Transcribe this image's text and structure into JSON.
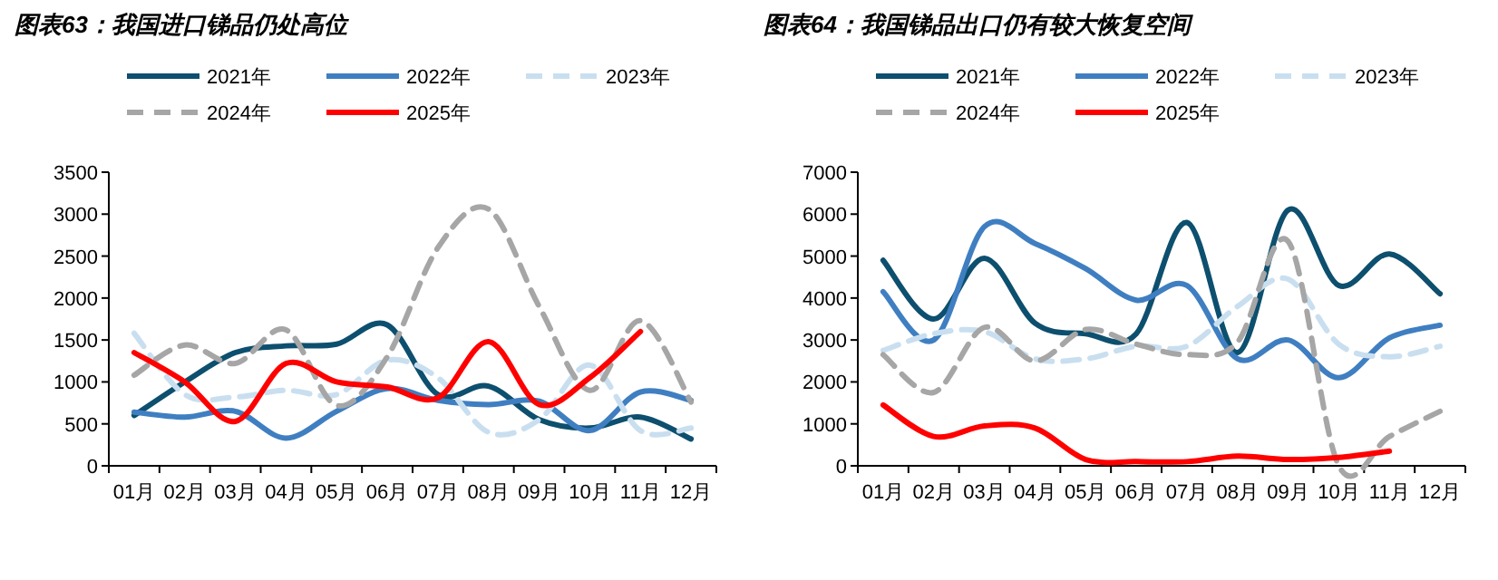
{
  "chart_data": [
    {
      "type": "line",
      "title": "图表63：我国进口锑品仍处高位",
      "legend": "top",
      "categories": [
        "01月",
        "02月",
        "03月",
        "04月",
        "05月",
        "06月",
        "07月",
        "08月",
        "09月",
        "10月",
        "11月",
        "12月"
      ],
      "ylim": [
        0,
        3500
      ],
      "yticks": [
        0,
        500,
        1000,
        1500,
        2000,
        2500,
        3000,
        3500
      ],
      "series": [
        {
          "name": "2021年",
          "color": "#0d4f6e",
          "line_style": "solid",
          "values": [
            600,
            1000,
            1350,
            1430,
            1450,
            1680,
            850,
            950,
            550,
            450,
            580,
            320
          ]
        },
        {
          "name": "2022年",
          "color": "#3f7fc1",
          "line_style": "solid",
          "values": [
            640,
            580,
            650,
            330,
            650,
            920,
            780,
            730,
            770,
            420,
            880,
            780
          ]
        },
        {
          "name": "2023年",
          "color": "#c9dff0",
          "line_style": "dashed",
          "values": [
            1580,
            850,
            820,
            900,
            850,
            1260,
            1050,
            400,
            550,
            1200,
            420,
            450
          ]
        },
        {
          "name": "2024年",
          "color": "#a6a6a6",
          "line_style": "dashed",
          "values": [
            1080,
            1440,
            1220,
            1620,
            720,
            1300,
            2600,
            3060,
            1900,
            900,
            1730,
            760
          ]
        },
        {
          "name": "2025年",
          "color": "#ff0000",
          "line_style": "solid",
          "values": [
            1350,
            1000,
            530,
            1220,
            1000,
            940,
            810,
            1480,
            730,
            1050,
            1600,
            null
          ]
        }
      ]
    },
    {
      "type": "line",
      "title": "图表64：我国锑品出口仍有较大恢复空间",
      "legend": "top",
      "categories": [
        "01月",
        "02月",
        "03月",
        "04月",
        "05月",
        "06月",
        "07月",
        "08月",
        "09月",
        "10月",
        "11月",
        "12月"
      ],
      "ylim": [
        0,
        7000
      ],
      "yticks": [
        0,
        1000,
        2000,
        3000,
        4000,
        5000,
        6000,
        7000
      ],
      "series": [
        {
          "name": "2021年",
          "color": "#0d4f6e",
          "line_style": "solid",
          "values": [
            4900,
            3500,
            4950,
            3400,
            3150,
            3150,
            5800,
            2700,
            6100,
            4300,
            5050,
            4100
          ]
        },
        {
          "name": "2022年",
          "color": "#3f7fc1",
          "line_style": "solid",
          "values": [
            4150,
            3000,
            5700,
            5300,
            4700,
            3950,
            4300,
            2550,
            3000,
            2100,
            3050,
            3350
          ]
        },
        {
          "name": "2023年",
          "color": "#c9dff0",
          "line_style": "dashed",
          "values": [
            2750,
            3150,
            3200,
            2550,
            2550,
            2850,
            2850,
            3800,
            4450,
            2900,
            2600,
            2850
          ]
        },
        {
          "name": "2024年",
          "color": "#a6a6a6",
          "line_style": "dashed",
          "values": [
            2650,
            1750,
            3300,
            2500,
            3250,
            2900,
            2650,
            2950,
            5350,
            0,
            700,
            1300
          ]
        },
        {
          "name": "2025年",
          "color": "#ff0000",
          "line_style": "solid",
          "values": [
            1450,
            700,
            950,
            900,
            150,
            100,
            100,
            230,
            150,
            200,
            350,
            null
          ]
        }
      ]
    }
  ]
}
